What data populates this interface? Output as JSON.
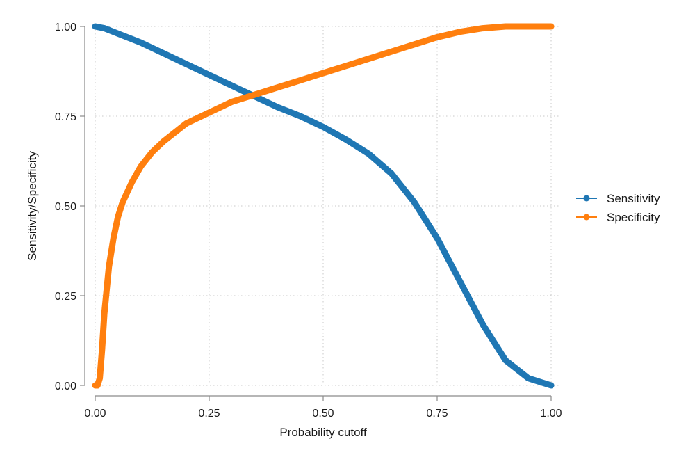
{
  "chart_data": {
    "type": "line",
    "title": "",
    "xlabel": "Probability cutoff",
    "ylabel": "Sensitivity/Specificity",
    "xlim": [
      0,
      1
    ],
    "ylim": [
      0,
      1
    ],
    "x_ticks": [
      0,
      0.25,
      0.5,
      0.75,
      1
    ],
    "x_tick_labels": [
      "0.00",
      "0.25",
      "0.50",
      "0.75",
      "1.00"
    ],
    "y_ticks": [
      0,
      0.25,
      0.5,
      0.75,
      1
    ],
    "y_tick_labels": [
      "0.00",
      "0.25",
      "0.50",
      "0.75",
      "1.00"
    ],
    "grid": true,
    "legend_position": "right",
    "series": [
      {
        "name": "Sensitivity",
        "color": "#1f77b4",
        "x": [
          0,
          0.02,
          0.05,
          0.1,
          0.15,
          0.2,
          0.25,
          0.3,
          0.35,
          0.4,
          0.45,
          0.5,
          0.55,
          0.6,
          0.65,
          0.7,
          0.75,
          0.8,
          0.85,
          0.9,
          0.95,
          1.0
        ],
        "y": [
          1.0,
          0.995,
          0.98,
          0.955,
          0.925,
          0.895,
          0.865,
          0.835,
          0.805,
          0.775,
          0.75,
          0.72,
          0.685,
          0.645,
          0.59,
          0.51,
          0.41,
          0.29,
          0.17,
          0.07,
          0.02,
          0.0
        ]
      },
      {
        "name": "Specificity",
        "color": "#ff7f0e",
        "x": [
          0,
          0.005,
          0.01,
          0.015,
          0.02,
          0.03,
          0.04,
          0.05,
          0.06,
          0.08,
          0.1,
          0.125,
          0.15,
          0.2,
          0.25,
          0.3,
          0.35,
          0.4,
          0.45,
          0.5,
          0.55,
          0.6,
          0.65,
          0.7,
          0.75,
          0.8,
          0.85,
          0.9,
          0.95,
          1.0
        ],
        "y": [
          0,
          0.0,
          0.02,
          0.1,
          0.2,
          0.33,
          0.41,
          0.47,
          0.51,
          0.565,
          0.61,
          0.65,
          0.68,
          0.73,
          0.76,
          0.79,
          0.81,
          0.83,
          0.85,
          0.87,
          0.89,
          0.91,
          0.93,
          0.95,
          0.97,
          0.985,
          0.995,
          1.0,
          1.0,
          1.0
        ]
      }
    ]
  }
}
